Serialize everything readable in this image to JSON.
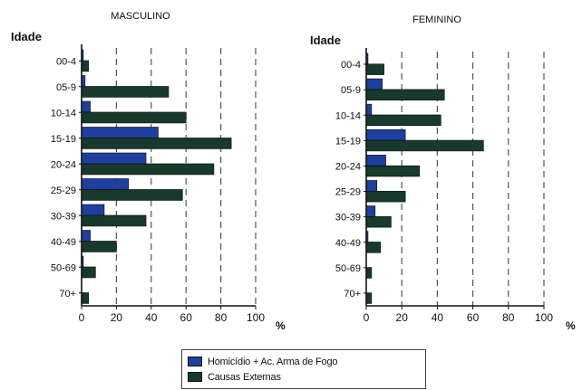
{
  "colors": {
    "homicidio": "#1f3fa0",
    "causas": "#173a2c",
    "grid": "#555555",
    "axis": "#111111"
  },
  "legend": {
    "items": [
      {
        "key": "homicidio",
        "label": "Homicídio + Ac. Arma de Fogo"
      },
      {
        "key": "causas",
        "label": "Causas Externas"
      }
    ]
  },
  "chart_data": [
    {
      "type": "bar",
      "orientation": "horizontal",
      "title": "MASCULINO",
      "ylabel": "Idade",
      "xlabel": "%",
      "xlim": [
        0,
        100
      ],
      "xticks": [
        0,
        20,
        40,
        60,
        80,
        100
      ],
      "grid": "vertical dashed",
      "categories": [
        "00-4",
        "05-9",
        "10-14",
        "15-19",
        "20-24",
        "25-29",
        "30-39",
        "40-49",
        "50-69",
        "70+"
      ],
      "series": [
        {
          "name": "Homicídio + Ac. Arma de Fogo",
          "values": [
            1,
            2,
            5,
            44,
            37,
            27,
            13,
            5,
            1,
            0
          ]
        },
        {
          "name": "Causas Externas",
          "values": [
            4,
            50,
            60,
            86,
            76,
            58,
            37,
            20,
            8,
            4
          ]
        }
      ]
    },
    {
      "type": "bar",
      "orientation": "horizontal",
      "title": "FEMININO",
      "ylabel": "Idade",
      "xlabel": "%",
      "xlim": [
        0,
        100
      ],
      "xticks": [
        0,
        20,
        40,
        60,
        80,
        100
      ],
      "grid": "vertical dashed",
      "categories": [
        "00-4",
        "05-9",
        "10-14",
        "15-19",
        "20-24",
        "25-29",
        "30-39",
        "40-49",
        "50-69",
        "70+"
      ],
      "series": [
        {
          "name": "Homicídio + Ac. Arma de Fogo",
          "values": [
            1,
            9,
            3,
            22,
            11,
            6,
            5,
            1,
            0,
            0
          ]
        },
        {
          "name": "Causas Externas",
          "values": [
            10,
            44,
            42,
            66,
            30,
            22,
            14,
            8,
            3,
            3
          ]
        }
      ]
    }
  ]
}
